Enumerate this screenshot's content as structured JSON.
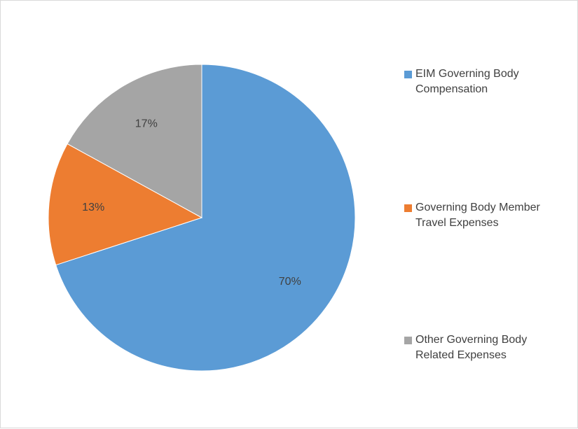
{
  "chart_data": {
    "type": "pie",
    "categories": [
      "EIM Governing Body Compensation",
      "Governing Body Member Travel Expenses",
      "Other Governing Body Related Expenses"
    ],
    "values": [
      70,
      13,
      17
    ],
    "data_labels": [
      "70%",
      "13%",
      "17%"
    ],
    "colors": [
      "#5b9bd5",
      "#ed7d31",
      "#a5a5a5"
    ],
    "start_angle_deg": 0,
    "direction": "clockwise",
    "legend_position": "right",
    "legend": [
      {
        "lines": [
          "EIM Governing Body",
          "Compensation"
        ],
        "color": "#5b9bd5"
      },
      {
        "lines": [
          "Governing Body Member",
          "Travel Expenses"
        ],
        "color": "#ed7d31"
      },
      {
        "lines": [
          "Other Governing Body",
          "Related Expenses"
        ],
        "color": "#a5a5a5"
      }
    ]
  }
}
